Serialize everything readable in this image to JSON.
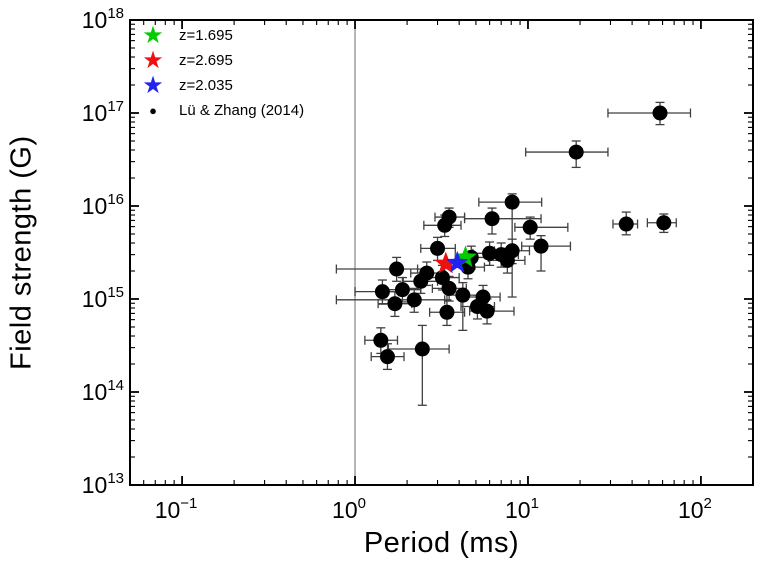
{
  "figure": {
    "background": "#ffffff"
  },
  "chart_data": {
    "type": "scatter",
    "title": "",
    "xlabel": "Period (ms)",
    "ylabel": "Field strength (G)",
    "x_scale": "log",
    "y_scale": "log",
    "xlim": [
      0.05,
      200
    ],
    "ylim": [
      10000000000000.0,
      1e+18
    ],
    "x_tick_exponents": [
      -1,
      0,
      1,
      2
    ],
    "y_tick_exponents": [
      13,
      14,
      15,
      16,
      17,
      18
    ],
    "grid": false,
    "legend_position": "top-left",
    "frame_color": "#000000",
    "errorbar_color": "#404040",
    "vline": {
      "x": 1.0,
      "color": "#8f8f8f"
    },
    "series": [
      {
        "name": "z=1.695",
        "marker": "star",
        "color": "#00cc00",
        "points": [
          {
            "p": 4.35,
            "b": 2800000000000000.0
          }
        ]
      },
      {
        "name": "z=2.695",
        "marker": "star",
        "color": "#ee1111",
        "points": [
          {
            "p": 3.35,
            "b": 2400000000000000.0
          }
        ]
      },
      {
        "name": "z=2.035",
        "marker": "star",
        "color": "#2222ee",
        "points": [
          {
            "p": 3.9,
            "b": 2450000000000000.0
          }
        ]
      },
      {
        "name": "Lü & Zhang (2014)",
        "marker": "circle",
        "color": "#000000",
        "points": [
          {
            "p": 58,
            "b": 1e+17,
            "plo": 29,
            "phi": 87,
            "blo": 7.5e+16,
            "bhi": 1.3e+17
          },
          {
            "p": 19,
            "b": 3.8e+16,
            "plo": 9.7,
            "phi": 29,
            "blo": 2.6e+16,
            "bhi": 5e+16
          },
          {
            "p": 37,
            "b": 6400000000000000.0,
            "plo": 31,
            "phi": 43,
            "blo": 4900000000000000.0,
            "bhi": 8600000000000000.0
          },
          {
            "p": 61,
            "b": 6600000000000000.0,
            "plo": 49,
            "phi": 72,
            "blo": 5200000000000000.0,
            "bhi": 8200000000000000.0
          },
          {
            "p": 8.1,
            "b": 1.1e+16,
            "plo": 5.2,
            "phi": 12,
            "blo": 1050000000000000.0,
            "bhi": 1.35e+16
          },
          {
            "p": 6.2,
            "b": 7300000000000000.0,
            "plo": 4.3,
            "phi": 11.9,
            "blo": 5000000000000000.0,
            "bhi": 9500000000000000.0
          },
          {
            "p": 3.5,
            "b": 7600000000000000.0,
            "plo": 2.9,
            "phi": 4.3,
            "blo": 5900000000000000.0,
            "bhi": 9500000000000000.0
          },
          {
            "p": 3.3,
            "b": 6200000000000000.0,
            "plo": 2.5,
            "phi": 4.1,
            "blo": 4700000000000000.0,
            "bhi": 8000000000000000.0
          },
          {
            "p": 10.3,
            "b": 5900000000000000.0,
            "plo": 8.4,
            "phi": 17,
            "blo": 4400000000000000.0,
            "bhi": 7600000000000000.0
          },
          {
            "p": 11.9,
            "b": 3700000000000000.0,
            "plo": 9.2,
            "phi": 17.6,
            "blo": 2000000000000000.0,
            "bhi": 4800000000000000.0
          },
          {
            "p": 8.1,
            "b": 3300000000000000.0,
            "plo": 6.4,
            "phi": 10.2,
            "blo": 2400000000000000.0,
            "bhi": 4400000000000000.0
          },
          {
            "p": 6.0,
            "b": 3100000000000000.0,
            "plo": 4.8,
            "phi": 7.6,
            "blo": 2300000000000000.0,
            "bhi": 4100000000000000.0
          },
          {
            "p": 7.0,
            "b": 3000000000000000.0,
            "plo": 5.6,
            "phi": 8.8,
            "blo": 2200000000000000.0,
            "bhi": 4000000000000000.0
          },
          {
            "p": 7.6,
            "b": 2600000000000000.0,
            "plo": 6.0,
            "phi": 9.6,
            "blo": 1900000000000000.0,
            "bhi": 3500000000000000.0
          },
          {
            "p": 4.7,
            "b": 2800000000000000.0,
            "plo": 3.8,
            "phi": 5.9,
            "blo": 2100000000000000.0,
            "bhi": 3700000000000000.0
          },
          {
            "p": 4.5,
            "b": 2200000000000000.0,
            "plo": 3.6,
            "phi": 5.6,
            "blo": 1650000000000000.0,
            "bhi": 2900000000000000.0
          },
          {
            "p": 3.0,
            "b": 3500000000000000.0,
            "plo": 2.4,
            "phi": 3.8,
            "blo": 2600000000000000.0,
            "bhi": 4600000000000000.0
          },
          {
            "p": 1.74,
            "b": 2100000000000000.0,
            "plo": 0.78,
            "phi": 2.3,
            "blo": 1550000000000000.0,
            "bhi": 2800000000000000.0
          },
          {
            "p": 2.6,
            "b": 1900000000000000.0,
            "plo": 2.1,
            "phi": 3.3,
            "blo": 1400000000000000.0,
            "bhi": 2500000000000000.0
          },
          {
            "p": 3.2,
            "b": 1700000000000000.0,
            "plo": 2.6,
            "phi": 4.0,
            "blo": 1250000000000000.0,
            "bhi": 2300000000000000.0
          },
          {
            "p": 2.4,
            "b": 1550000000000000.0,
            "plo": 1.9,
            "phi": 3.0,
            "blo": 1150000000000000.0,
            "bhi": 2100000000000000.0
          },
          {
            "p": 1.88,
            "b": 1260000000000000.0,
            "plo": 1.5,
            "phi": 2.4,
            "blo": 930000000000000.0,
            "bhi": 1700000000000000.0
          },
          {
            "p": 1.44,
            "b": 1200000000000000.0,
            "plo": 1.0,
            "phi": 1.8,
            "blo": 880000000000000.0,
            "bhi": 1600000000000000.0
          },
          {
            "p": 2.2,
            "b": 980000000000000.0,
            "plo": 0.78,
            "phi": 3.3,
            "blo": 720000000000000.0,
            "bhi": 1300000000000000.0
          },
          {
            "p": 1.7,
            "b": 890000000000000.0,
            "plo": 1.36,
            "phi": 2.13,
            "blo": 650000000000000.0,
            "bhi": 1200000000000000.0
          },
          {
            "p": 3.5,
            "b": 1300000000000000.0,
            "plo": 2.8,
            "phi": 4.4,
            "blo": 950000000000000.0,
            "bhi": 1750000000000000.0
          },
          {
            "p": 3.4,
            "b": 720000000000000.0,
            "plo": 2.7,
            "phi": 4.3,
            "blo": 520000000000000.0,
            "bhi": 980000000000000.0
          },
          {
            "p": 4.2,
            "b": 1100000000000000.0,
            "plo": 3.4,
            "phi": 5.3,
            "blo": 460000000000000.0,
            "bhi": 1500000000000000.0
          },
          {
            "p": 5.5,
            "b": 1050000000000000.0,
            "plo": 4.4,
            "phi": 6.9,
            "blo": 770000000000000.0,
            "bhi": 1400000000000000.0
          },
          {
            "p": 5.1,
            "b": 830000000000000.0,
            "plo": 4.1,
            "phi": 6.4,
            "blo": 610000000000000.0,
            "bhi": 1100000000000000.0
          },
          {
            "p": 5.8,
            "b": 740000000000000.0,
            "plo": 4.6,
            "phi": 8.3,
            "blo": 540000000000000.0,
            "bhi": 1000000000000000.0
          },
          {
            "p": 1.41,
            "b": 360000000000000.0,
            "plo": 1.14,
            "phi": 1.76,
            "blo": 260000000000000.0,
            "bhi": 490000000000000.0
          },
          {
            "p": 1.54,
            "b": 240000000000000.0,
            "plo": 1.24,
            "phi": 1.92,
            "blo": 175000000000000.0,
            "bhi": 330000000000000.0
          },
          {
            "p": 2.45,
            "b": 290000000000000.0,
            "plo": 1.56,
            "phi": 3.5,
            "blo": 72000000000000.0,
            "bhi": 520000000000000.0
          }
        ]
      }
    ]
  }
}
